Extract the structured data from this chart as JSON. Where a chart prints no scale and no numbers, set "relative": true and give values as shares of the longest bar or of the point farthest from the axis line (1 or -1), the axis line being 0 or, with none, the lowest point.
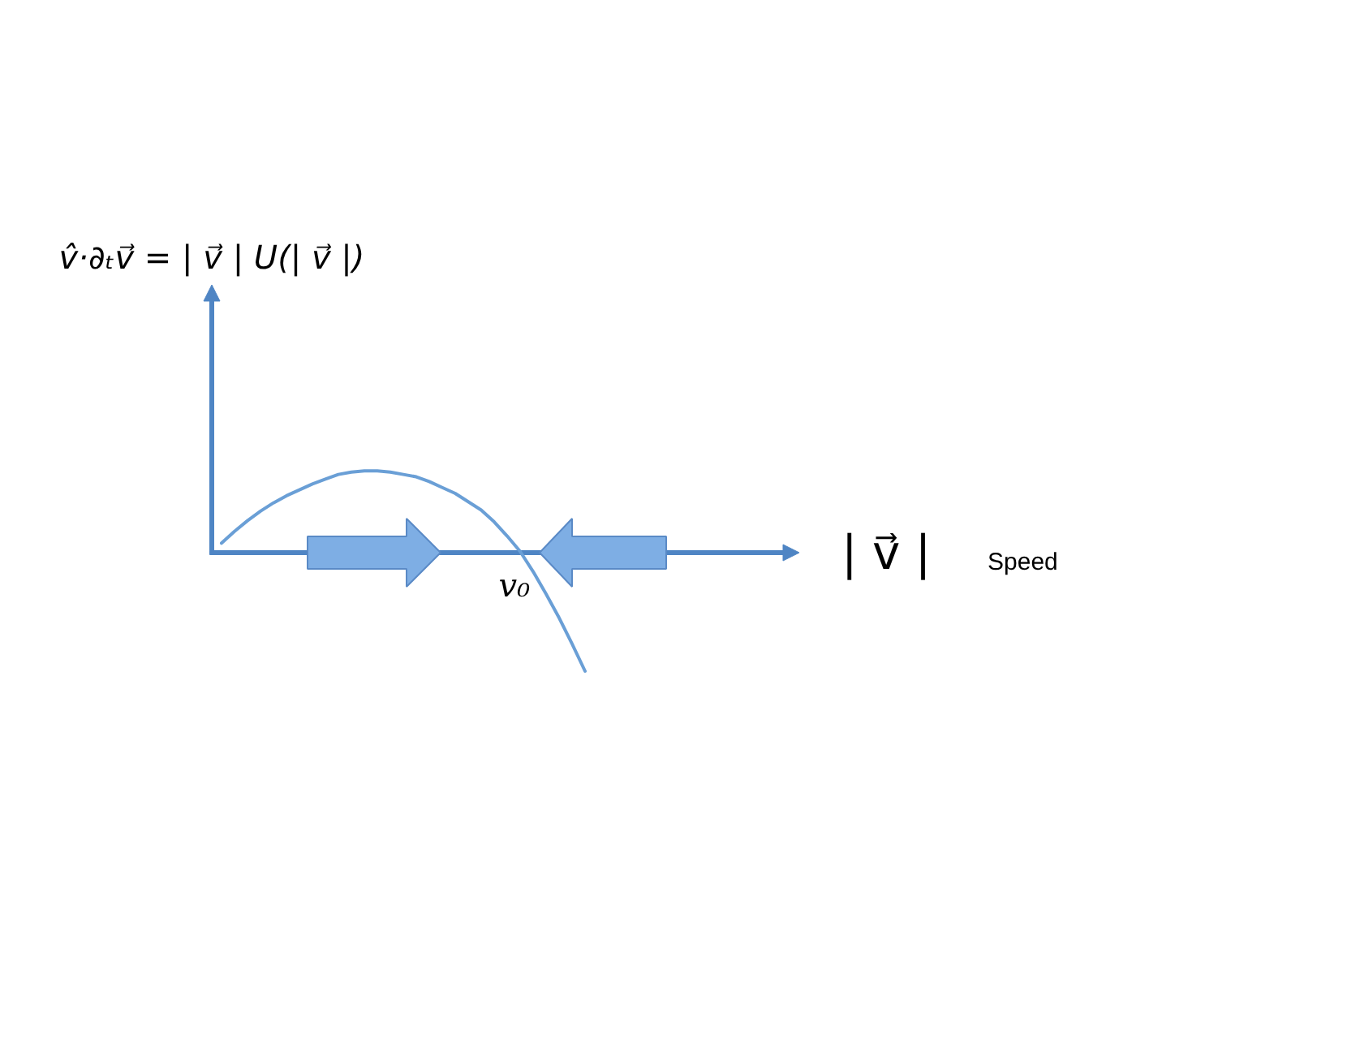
{
  "chart_data": {
    "type": "line",
    "relative": true,
    "categories": [
      null,
      null,
      null,
      null,
      null,
      null,
      null,
      null,
      null,
      null,
      null,
      null,
      null,
      null,
      null,
      null,
      null,
      null,
      null,
      null,
      null,
      null,
      null,
      null,
      null,
      null,
      null,
      null,
      null
    ],
    "values": [
      0.08,
      0.18,
      0.27,
      0.35,
      0.42,
      0.48,
      0.53,
      0.58,
      0.62,
      0.66,
      0.68,
      0.69,
      0.69,
      0.68,
      0.66,
      0.64,
      0.6,
      0.55,
      0.5,
      0.43,
      0.36,
      0.26,
      0.14,
      0.01,
      -0.16,
      -0.35,
      -0.55,
      -0.77,
      -1
    ],
    "color": "#6a9fd6",
    "annotations": [
      "v̂·∂ₜv⃗ = | v⃗ | U(| v⃗ |)",
      "| v⃗ |",
      "Speed",
      {
        "text": "v₀",
        "y": 0
      }
    ]
  }
}
